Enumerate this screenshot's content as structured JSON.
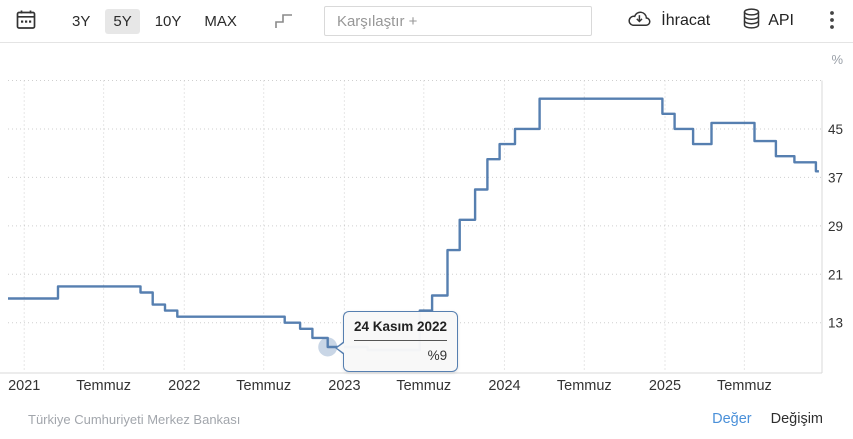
{
  "toolbar": {
    "ranges": [
      {
        "label": "3Y",
        "active": false
      },
      {
        "label": "5Y",
        "active": true
      },
      {
        "label": "10Y",
        "active": false
      },
      {
        "label": "MAX",
        "active": false
      }
    ],
    "compare_placeholder": "Karşılaştır +",
    "export_label": "İhracat",
    "api_label": "API",
    "icons": [
      "calendar-range-icon",
      "step-line-chart-icon",
      "cloud-download-icon",
      "database-icon",
      "kebab-menu-icon"
    ]
  },
  "chart_data": {
    "type": "line",
    "line_style": "step-after",
    "unit_label": "%",
    "line_color": "#567fb0",
    "grid": "dotted",
    "legend": "none",
    "xlim": [
      "2020-11-25",
      "2025-12-25"
    ],
    "ylim": [
      4.7,
      53
    ],
    "x_ticks": [
      {
        "date": "2021-01-01",
        "label": "2021"
      },
      {
        "date": "2021-07-01",
        "label": "Temmuz"
      },
      {
        "date": "2022-01-01",
        "label": "2022"
      },
      {
        "date": "2022-07-01",
        "label": "Temmuz"
      },
      {
        "date": "2023-01-01",
        "label": "2023"
      },
      {
        "date": "2023-07-01",
        "label": "Temmuz"
      },
      {
        "date": "2024-01-01",
        "label": "2024"
      },
      {
        "date": "2024-07-01",
        "label": "Temmuz"
      },
      {
        "date": "2025-01-01",
        "label": "2025"
      },
      {
        "date": "2025-07-01",
        "label": "Temmuz"
      }
    ],
    "y_ticks": [
      {
        "value": 45,
        "label": "45"
      },
      {
        "value": 37,
        "label": "37"
      },
      {
        "value": 29,
        "label": "29"
      },
      {
        "value": 21,
        "label": "21"
      },
      {
        "value": 13,
        "label": "13"
      }
    ],
    "y_grid_extra": [
      53
    ],
    "series": [
      {
        "points": [
          {
            "date": "2020-11-25",
            "value": 17
          },
          {
            "date": "2021-03-19",
            "value": 19
          },
          {
            "date": "2021-09-23",
            "value": 18
          },
          {
            "date": "2021-10-21",
            "value": 16
          },
          {
            "date": "2021-11-18",
            "value": 15
          },
          {
            "date": "2021-12-16",
            "value": 14
          },
          {
            "date": "2022-08-18",
            "value": 13
          },
          {
            "date": "2022-09-22",
            "value": 12
          },
          {
            "date": "2022-10-20",
            "value": 10.5
          },
          {
            "date": "2022-11-24",
            "value": 9
          },
          {
            "date": "2023-02-23",
            "value": 8.5
          },
          {
            "date": "2023-06-22",
            "value": 15
          },
          {
            "date": "2023-07-20",
            "value": 17.5
          },
          {
            "date": "2023-08-24",
            "value": 25
          },
          {
            "date": "2023-09-21",
            "value": 30
          },
          {
            "date": "2023-10-26",
            "value": 35
          },
          {
            "date": "2023-11-23",
            "value": 40
          },
          {
            "date": "2023-12-21",
            "value": 42.5
          },
          {
            "date": "2024-01-25",
            "value": 45
          },
          {
            "date": "2024-03-21",
            "value": 50
          },
          {
            "date": "2024-12-26",
            "value": 47.5
          },
          {
            "date": "2025-01-23",
            "value": 45
          },
          {
            "date": "2025-03-06",
            "value": 42.5
          },
          {
            "date": "2025-04-17",
            "value": 46
          },
          {
            "date": "2025-07-24",
            "value": 43
          },
          {
            "date": "2025-09-11",
            "value": 40.5
          },
          {
            "date": "2025-10-23",
            "value": 39.5
          },
          {
            "date": "2025-12-11",
            "value": 38
          }
        ],
        "end_date": "2025-12-18"
      }
    ],
    "highlight_point": {
      "date": "2022-11-24",
      "value": 9
    }
  },
  "tooltip": {
    "date": "24 Kasım 2022",
    "value": "%9"
  },
  "footer": {
    "source": "Türkiye Cumhuriyeti Merkez Bankası",
    "links": [
      {
        "label": "Değer",
        "active": true
      },
      {
        "label": "Değişim",
        "active": false
      }
    ]
  }
}
